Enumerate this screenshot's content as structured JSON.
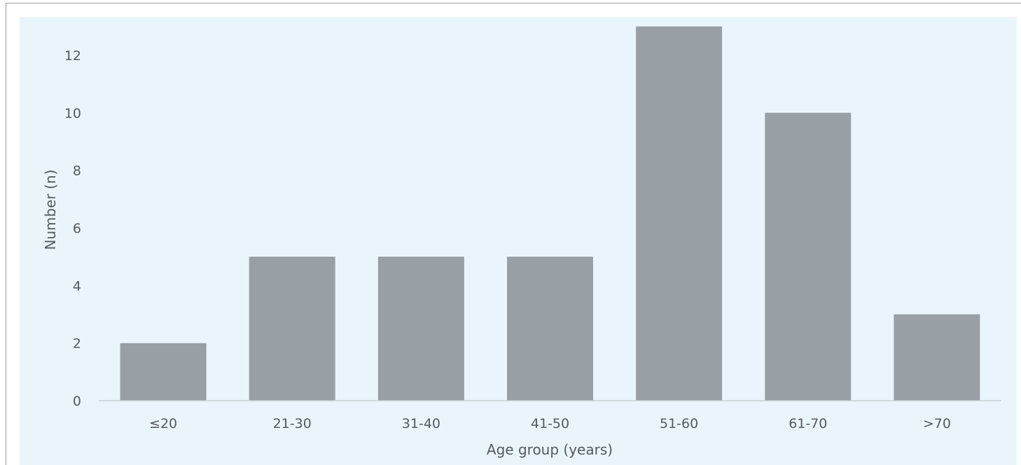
{
  "chart_data": {
    "type": "bar",
    "categories": [
      "≤20",
      "21-30",
      "31-40",
      "41-50",
      "51-60",
      "61-70",
      ">70"
    ],
    "values": [
      2,
      5,
      5,
      5,
      13,
      10,
      3
    ],
    "xlabel": "Age group (years)",
    "ylabel": "Number (n)",
    "ylim": [
      0,
      13
    ],
    "yticks": [
      0,
      2,
      4,
      6,
      8,
      10,
      12
    ],
    "grid": false,
    "bar_color": "#98a0a6",
    "axis_color": "#c8ced2",
    "background_color": "#eaf5fb"
  }
}
